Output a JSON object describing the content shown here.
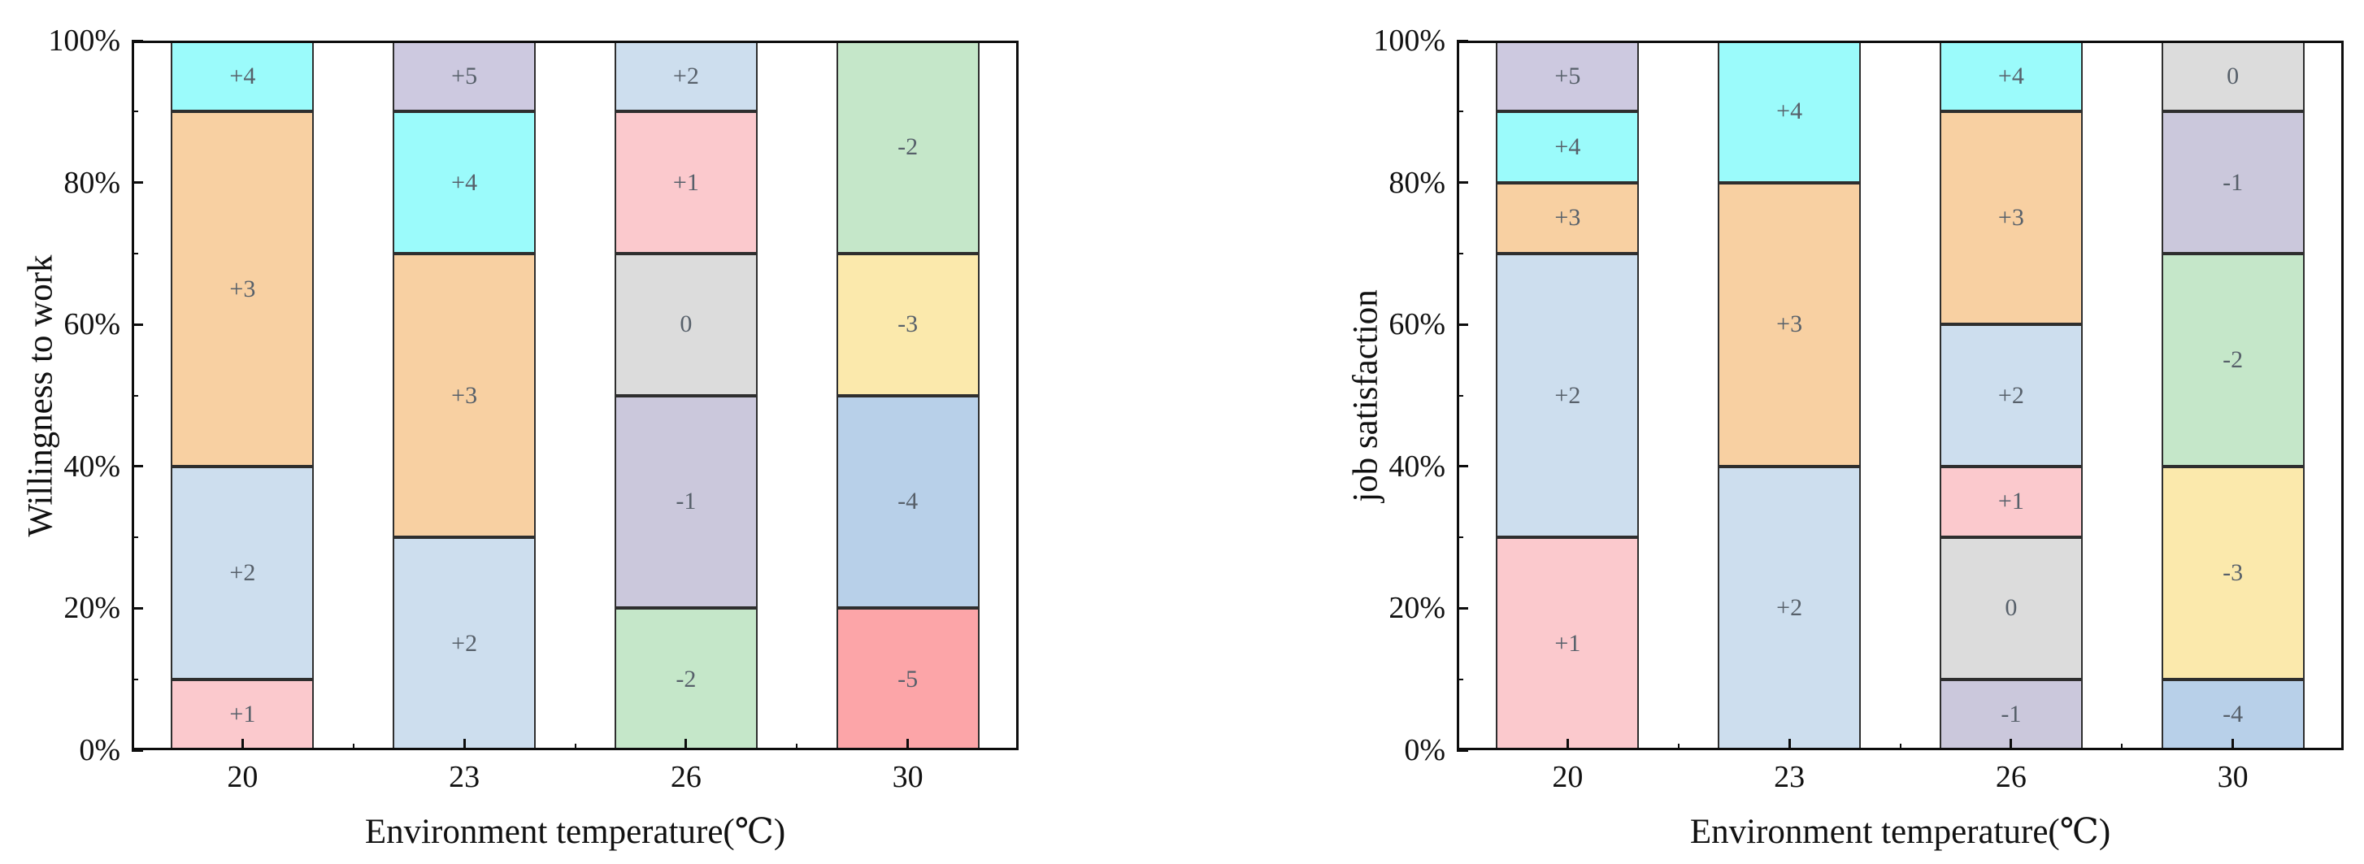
{
  "chart_data": [
    {
      "type": "bar",
      "stacked": true,
      "unit": "percent",
      "ylabel": "Willingness to work",
      "xlabel": "Environment temperature(℃)",
      "categories": [
        "20",
        "23",
        "26",
        "30"
      ],
      "y_ticks": [
        "0%",
        "20%",
        "40%",
        "60%",
        "80%",
        "100%"
      ],
      "ylim": [
        0,
        100
      ],
      "grid": false,
      "legend": false,
      "bars": [
        {
          "category": "20",
          "segments": [
            {
              "label": "+1",
              "value": 10
            },
            {
              "label": "+2",
              "value": 30
            },
            {
              "label": "+3",
              "value": 50
            },
            {
              "label": "+4",
              "value": 10
            }
          ]
        },
        {
          "category": "23",
          "segments": [
            {
              "label": "+2",
              "value": 30
            },
            {
              "label": "+3",
              "value": 40
            },
            {
              "label": "+4",
              "value": 20
            },
            {
              "label": "+5",
              "value": 10
            }
          ]
        },
        {
          "category": "26",
          "segments": [
            {
              "label": "-2",
              "value": 20
            },
            {
              "label": "-1",
              "value": 30
            },
            {
              "label": "0",
              "value": 20
            },
            {
              "label": "+1",
              "value": 20
            },
            {
              "label": "+2",
              "value": 10
            }
          ]
        },
        {
          "category": "30",
          "segments": [
            {
              "label": "-5",
              "value": 20
            },
            {
              "label": "-4",
              "value": 30
            },
            {
              "label": "-3",
              "value": 20
            },
            {
              "label": "-2",
              "value": 30
            }
          ]
        }
      ]
    },
    {
      "type": "bar",
      "stacked": true,
      "unit": "percent",
      "ylabel": "job satisfaction",
      "xlabel": "Environment temperature(℃)",
      "categories": [
        "20",
        "23",
        "26",
        "30"
      ],
      "y_ticks": [
        "0%",
        "20%",
        "40%",
        "60%",
        "80%",
        "100%"
      ],
      "ylim": [
        0,
        100
      ],
      "grid": false,
      "legend": false,
      "bars": [
        {
          "category": "20",
          "segments": [
            {
              "label": "+1",
              "value": 30
            },
            {
              "label": "+2",
              "value": 40
            },
            {
              "label": "+3",
              "value": 10
            },
            {
              "label": "+4",
              "value": 10
            },
            {
              "label": "+5",
              "value": 10
            }
          ]
        },
        {
          "category": "23",
          "segments": [
            {
              "label": "+2",
              "value": 40
            },
            {
              "label": "+3",
              "value": 40
            },
            {
              "label": "+4",
              "value": 20
            }
          ]
        },
        {
          "category": "26",
          "segments": [
            {
              "label": "-1",
              "value": 10
            },
            {
              "label": "0",
              "value": 20
            },
            {
              "label": "+1",
              "value": 10
            },
            {
              "label": "+2",
              "value": 20
            },
            {
              "label": "+3",
              "value": 30
            },
            {
              "label": "+4",
              "value": 10
            }
          ]
        },
        {
          "category": "30",
          "segments": [
            {
              "label": "-4",
              "value": 10
            },
            {
              "label": "-3",
              "value": 30
            },
            {
              "label": "-2",
              "value": 30
            },
            {
              "label": "-1",
              "value": 20
            },
            {
              "label": "0",
              "value": 10
            }
          ]
        }
      ]
    }
  ],
  "colors": {
    "+5": "#cdc9e0",
    "+4": "#9bfbfb",
    "+3": "#f8d0a2",
    "+2": "#cddeee",
    "+1": "#fbc9cd",
    "0": "#dcdcdc",
    "-1": "#cbc8dc",
    "-2": "#c5e7c9",
    "-3": "#fbe9ac",
    "-4": "#b8d0e9",
    "-5": "#fca5a8",
    "segment_border": "#2e2e2e",
    "frame": "#0d0d0d",
    "segment_label_text": "#57606a",
    "axis_text": "#111111",
    "background": "#ffffff"
  }
}
